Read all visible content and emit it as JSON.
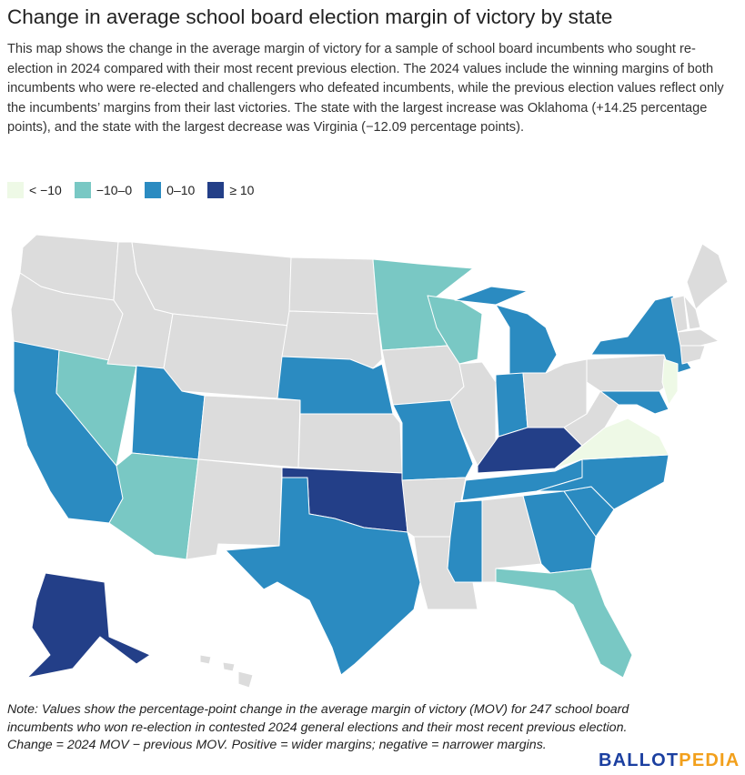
{
  "title": "Change in average school board election margin of victory by state",
  "description": "This map shows the change in the average margin of victory for a sample of school board incumbents who sought re-election in 2024 compared with their most recent previous election. The 2024 values include the winning margins of both incumbents who were re-elected and challengers who defeated incumbents, while the previous election values reflect only the incumbents’ margins from their last victories. The state with the largest increase was Oklahoma (+14.25 percentage points), and the state with the largest decrease was Virginia (−12.09 percentage points).",
  "legend": [
    {
      "label": "< −10",
      "color": "#eef9e6"
    },
    {
      "label": "−10–0",
      "color": "#79c8c4"
    },
    {
      "label": "0–10",
      "color": "#2b8bc1"
    },
    {
      "label": "≥ 10",
      "color": "#233f88"
    }
  ],
  "no_data_color": "#dcdcdc",
  "states": {
    "OK": 3,
    "KY": 3,
    "AK": 3,
    "CA": 2,
    "UT": 2,
    "NE": 2,
    "MO": 2,
    "TX": 2,
    "IN": 2,
    "MI": 2,
    "NY": 2,
    "MD": 2,
    "TN": 2,
    "NC": 2,
    "SC": 2,
    "GA": 2,
    "MS": 2,
    "NV": 1,
    "AZ": 1,
    "MN": 1,
    "WI": 1,
    "FL": 1,
    "VA": 0,
    "NJ": 0
  },
  "note": "Note: Values show the percentage-point change in the average margin of victory (MOV) for 247 school board incumbents who won re-election in contested 2024 general elections and their most recent previous election. Change = 2024 MOV − previous MOV. Positive = wider margins; negative = narrower margins.",
  "logo": {
    "part1": "BALLOT",
    "part2": "PEDIA"
  }
}
